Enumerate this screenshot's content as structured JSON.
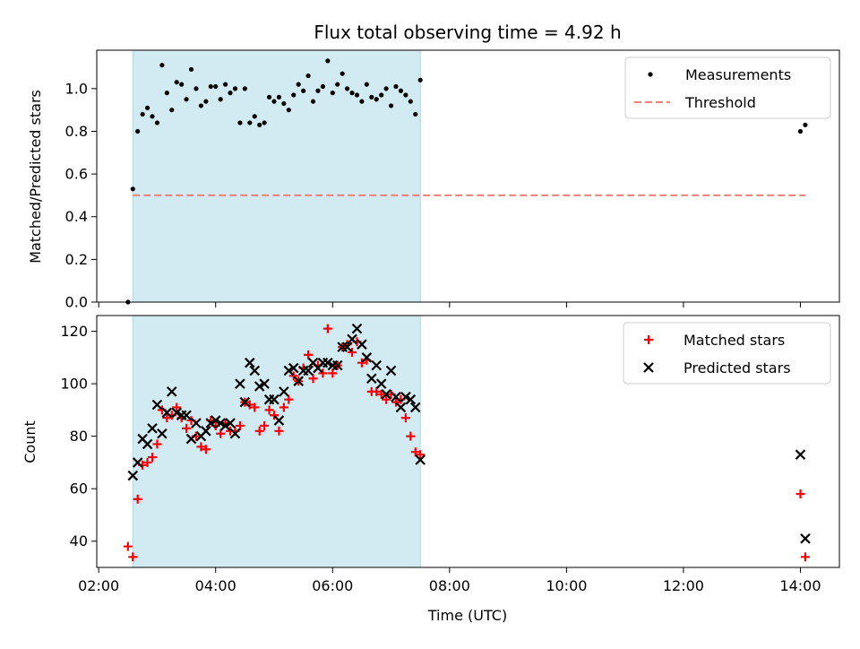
{
  "title": "Flux total observing time = 4.92 h",
  "colors": {
    "shade": "#add8e6",
    "measurement": "#000000",
    "threshold": "#f08080",
    "matched": "#ff0000",
    "predicted": "#000000"
  },
  "chart_data": [
    {
      "type": "scatter",
      "ylabel": "Matched/Predicted stars",
      "ylim": [
        0,
        1.18
      ],
      "yticks": [
        "0.0",
        "0.2",
        "0.4",
        "0.6",
        "0.8",
        "1.0"
      ],
      "xlim": [
        "01:58",
        "14:40"
      ],
      "shaded_x": [
        "02:35",
        "07:30"
      ],
      "legend_position": "upper right",
      "series": [
        {
          "name": "Measurements",
          "marker": "dot",
          "points": [
            [
              "02:30",
              0.0
            ],
            [
              "02:35",
              0.53
            ],
            [
              "02:40",
              0.8
            ],
            [
              "02:45",
              0.88
            ],
            [
              "02:50",
              0.91
            ],
            [
              "02:55",
              0.87
            ],
            [
              "03:00",
              0.84
            ],
            [
              "03:05",
              1.11
            ],
            [
              "03:10",
              0.98
            ],
            [
              "03:15",
              0.9
            ],
            [
              "03:20",
              1.03
            ],
            [
              "03:25",
              1.02
            ],
            [
              "03:30",
              0.95
            ],
            [
              "03:35",
              1.09
            ],
            [
              "03:40",
              1.0
            ],
            [
              "03:45",
              0.92
            ],
            [
              "03:50",
              0.94
            ],
            [
              "03:55",
              1.01
            ],
            [
              "04:00",
              1.01
            ],
            [
              "04:05",
              0.95
            ],
            [
              "04:10",
              1.02
            ],
            [
              "04:15",
              0.98
            ],
            [
              "04:20",
              1.0
            ],
            [
              "04:25",
              0.84
            ],
            [
              "04:30",
              1.0
            ],
            [
              "04:35",
              0.84
            ],
            [
              "04:40",
              0.87
            ],
            [
              "04:45",
              0.83
            ],
            [
              "04:50",
              0.84
            ],
            [
              "04:55",
              0.96
            ],
            [
              "05:00",
              0.94
            ],
            [
              "05:05",
              0.96
            ],
            [
              "05:10",
              0.93
            ],
            [
              "05:15",
              0.9
            ],
            [
              "05:20",
              0.97
            ],
            [
              "05:25",
              1.02
            ],
            [
              "05:30",
              0.99
            ],
            [
              "05:35",
              1.06
            ],
            [
              "05:40",
              0.94
            ],
            [
              "05:45",
              0.99
            ],
            [
              "05:50",
              1.01
            ],
            [
              "05:55",
              1.13
            ],
            [
              "06:00",
              0.98
            ],
            [
              "06:05",
              1.02
            ],
            [
              "06:10",
              1.07
            ],
            [
              "06:15",
              1.0
            ],
            [
              "06:20",
              0.98
            ],
            [
              "06:25",
              0.97
            ],
            [
              "06:30",
              0.94
            ],
            [
              "06:35",
              1.02
            ],
            [
              "06:40",
              0.96
            ],
            [
              "06:45",
              0.95
            ],
            [
              "06:50",
              0.97
            ],
            [
              "06:55",
              1.0
            ],
            [
              "07:00",
              0.92
            ],
            [
              "07:05",
              1.01
            ],
            [
              "07:10",
              0.99
            ],
            [
              "07:15",
              0.97
            ],
            [
              "07:20",
              0.94
            ],
            [
              "07:25",
              0.88
            ],
            [
              "07:30",
              1.04
            ],
            [
              "14:00",
              0.8
            ],
            [
              "14:05",
              0.83
            ]
          ]
        },
        {
          "name": "Threshold",
          "marker": "dashed-line",
          "points": [
            [
              "02:35",
              0.5
            ],
            [
              "14:05",
              0.5
            ]
          ]
        }
      ]
    },
    {
      "type": "scatter",
      "xlabel": "Time (UTC)",
      "ylabel": "Count",
      "ylim": [
        30,
        126
      ],
      "yticks": [
        "40",
        "60",
        "80",
        "100",
        "120"
      ],
      "xticks": [
        "02:00",
        "04:00",
        "06:00",
        "08:00",
        "10:00",
        "12:00",
        "14:00"
      ],
      "xlim": [
        "01:58",
        "14:40"
      ],
      "shaded_x": [
        "02:35",
        "07:30"
      ],
      "legend_position": "upper right",
      "series": [
        {
          "name": "Matched stars",
          "marker": "plus",
          "points": [
            [
              "02:30",
              38
            ],
            [
              "02:35",
              34
            ],
            [
              "02:40",
              56
            ],
            [
              "02:45",
              69
            ],
            [
              "02:50",
              70
            ],
            [
              "02:55",
              72
            ],
            [
              "03:00",
              77
            ],
            [
              "03:05",
              90
            ],
            [
              "03:10",
              87
            ],
            [
              "03:15",
              88
            ],
            [
              "03:20",
              91
            ],
            [
              "03:25",
              87
            ],
            [
              "03:30",
              83
            ],
            [
              "03:35",
              86
            ],
            [
              "03:40",
              80
            ],
            [
              "03:45",
              76
            ],
            [
              "03:50",
              75
            ],
            [
              "03:55",
              86
            ],
            [
              "04:00",
              84
            ],
            [
              "04:05",
              81
            ],
            [
              "04:10",
              85
            ],
            [
              "04:15",
              82
            ],
            [
              "04:20",
              82
            ],
            [
              "04:25",
              84
            ],
            [
              "04:30",
              93
            ],
            [
              "04:35",
              92
            ],
            [
              "04:40",
              91
            ],
            [
              "04:45",
              82
            ],
            [
              "04:50",
              84
            ],
            [
              "04:55",
              90
            ],
            [
              "05:00",
              88
            ],
            [
              "05:05",
              82
            ],
            [
              "05:10",
              91
            ],
            [
              "05:15",
              94
            ],
            [
              "05:20",
              103
            ],
            [
              "05:25",
              101
            ],
            [
              "05:30",
              106
            ],
            [
              "05:35",
              111
            ],
            [
              "05:40",
              102
            ],
            [
              "05:45",
              107
            ],
            [
              "05:50",
              104
            ],
            [
              "05:55",
              121
            ],
            [
              "06:00",
              104
            ],
            [
              "06:05",
              107
            ],
            [
              "06:10",
              114
            ],
            [
              "06:15",
              115
            ],
            [
              "06:20",
              112
            ],
            [
              "06:25",
              116
            ],
            [
              "06:30",
              108
            ],
            [
              "06:35",
              109
            ],
            [
              "06:40",
              97
            ],
            [
              "06:45",
              97
            ],
            [
              "06:50",
              96
            ],
            [
              "06:55",
              94
            ],
            [
              "07:00",
              96
            ],
            [
              "07:05",
              93
            ],
            [
              "07:10",
              94
            ],
            [
              "07:15",
              87
            ],
            [
              "07:20",
              80
            ],
            [
              "07:25",
              74
            ],
            [
              "07:30",
              73
            ],
            [
              "14:00",
              58
            ],
            [
              "14:05",
              34
            ]
          ]
        },
        {
          "name": "Predicted stars",
          "marker": "x",
          "points": [
            [
              "02:35",
              65
            ],
            [
              "02:40",
              70
            ],
            [
              "02:45",
              79
            ],
            [
              "02:50",
              77
            ],
            [
              "02:55",
              83
            ],
            [
              "03:00",
              92
            ],
            [
              "03:05",
              81
            ],
            [
              "03:10",
              89
            ],
            [
              "03:15",
              97
            ],
            [
              "03:20",
              89
            ],
            [
              "03:25",
              88
            ],
            [
              "03:30",
              88
            ],
            [
              "03:35",
              79
            ],
            [
              "03:40",
              85
            ],
            [
              "03:45",
              80
            ],
            [
              "03:50",
              82
            ],
            [
              "03:55",
              85
            ],
            [
              "04:00",
              86
            ],
            [
              "04:05",
              85
            ],
            [
              "04:10",
              84
            ],
            [
              "04:15",
              85
            ],
            [
              "04:20",
              81
            ],
            [
              "04:25",
              100
            ],
            [
              "04:30",
              93
            ],
            [
              "04:35",
              108
            ],
            [
              "04:40",
              105
            ],
            [
              "04:45",
              99
            ],
            [
              "04:50",
              100
            ],
            [
              "04:55",
              94
            ],
            [
              "05:00",
              94
            ],
            [
              "05:05",
              86
            ],
            [
              "05:10",
              97
            ],
            [
              "05:15",
              105
            ],
            [
              "05:20",
              106
            ],
            [
              "05:25",
              101
            ],
            [
              "05:30",
              105
            ],
            [
              "05:35",
              105
            ],
            [
              "05:40",
              108
            ],
            [
              "05:45",
              106
            ],
            [
              "05:50",
              108
            ],
            [
              "05:55",
              108
            ],
            [
              "06:00",
              107
            ],
            [
              "06:05",
              107
            ],
            [
              "06:10",
              114
            ],
            [
              "06:15",
              114
            ],
            [
              "06:20",
              117
            ],
            [
              "06:25",
              121
            ],
            [
              "06:30",
              115
            ],
            [
              "06:35",
              110
            ],
            [
              "06:40",
              102
            ],
            [
              "06:45",
              107
            ],
            [
              "06:50",
              100
            ],
            [
              "06:55",
              96
            ],
            [
              "07:00",
              105
            ],
            [
              "07:05",
              95
            ],
            [
              "07:10",
              91
            ],
            [
              "07:15",
              95
            ],
            [
              "07:20",
              94
            ],
            [
              "07:25",
              91
            ],
            [
              "07:30",
              71
            ],
            [
              "14:00",
              73
            ],
            [
              "14:05",
              41
            ]
          ]
        }
      ]
    }
  ]
}
